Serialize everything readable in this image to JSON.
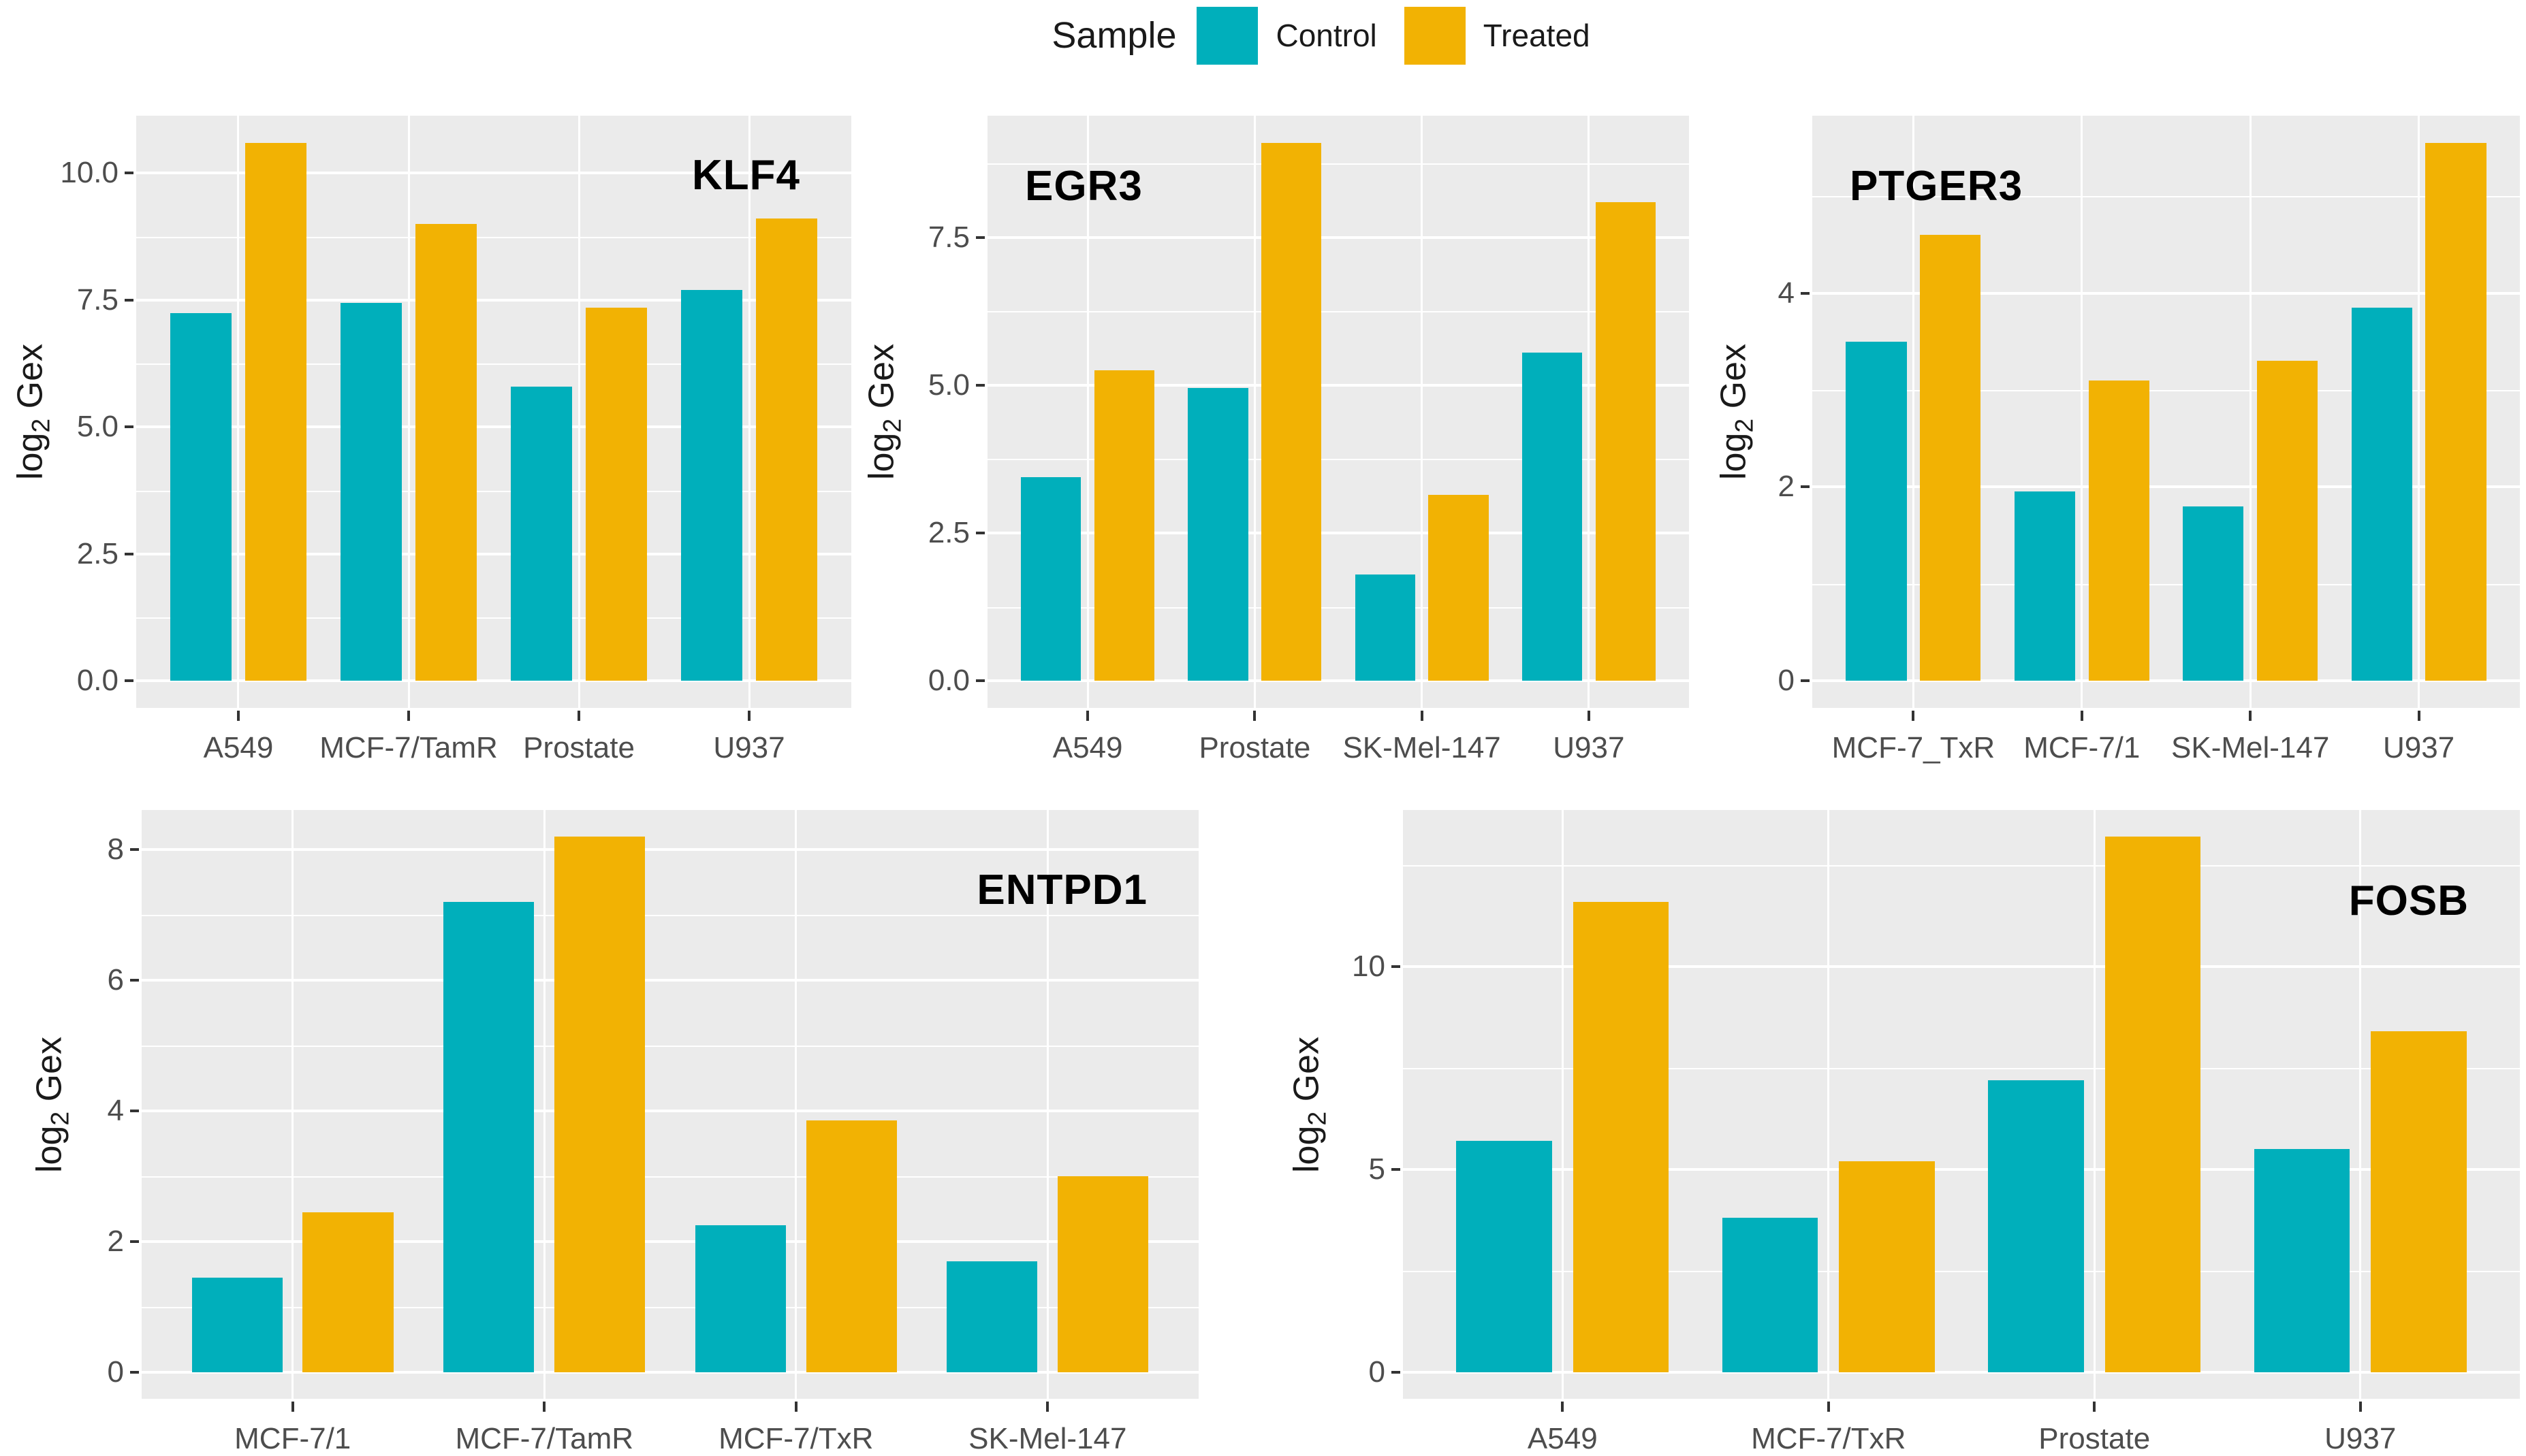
{
  "legend": {
    "title": "Sample",
    "items": [
      {
        "label": "Control",
        "color": "#00AFBB"
      },
      {
        "label": "Treated",
        "color": "#F2B203"
      }
    ]
  },
  "axis": {
    "y_title_pre": "log",
    "y_title_sub": "2",
    "y_title_post": " Gex"
  },
  "style": {
    "panel_bg": "#EBEBEB",
    "grid_color": "#FFFFFF",
    "tick_text_color": "#4D4D4D",
    "tick_mark_color": "#333333",
    "title_color": "#000000",
    "control_color": "#00AFBB",
    "treated_color": "#F2B203"
  },
  "chart_data": [
    {
      "type": "bar",
      "title": "KLF4",
      "title_pos": "right",
      "ylabel": "log2 Gex",
      "categories": [
        "A549",
        "MCF-7/TamR",
        "Prostate",
        "U937"
      ],
      "series": [
        {
          "name": "Control",
          "values": [
            7.25,
            7.45,
            5.8,
            7.7
          ]
        },
        {
          "name": "Treated",
          "values": [
            10.6,
            9.0,
            7.35,
            9.1
          ]
        }
      ],
      "yticks": [
        0,
        2.5,
        5,
        7.5,
        10
      ],
      "ytick_labels": [
        "0.0",
        "2.5",
        "5.0",
        "7.5",
        "10.0"
      ],
      "yminor": [
        1.25,
        3.75,
        6.25,
        8.75
      ],
      "ylim": [
        -0.53,
        11.13
      ],
      "grid": true,
      "legend_pos": "top"
    },
    {
      "type": "bar",
      "title": "EGR3",
      "title_pos": "left",
      "ylabel": "log2 Gex",
      "categories": [
        "A549",
        "Prostate",
        "SK-Mel-147",
        "U937"
      ],
      "series": [
        {
          "name": "Control",
          "values": [
            3.45,
            4.95,
            1.8,
            5.55
          ]
        },
        {
          "name": "Treated",
          "values": [
            5.25,
            9.1,
            3.15,
            8.1
          ]
        }
      ],
      "yticks": [
        0,
        2.5,
        5,
        7.5
      ],
      "ytick_labels": [
        "0.0",
        "2.5",
        "5.0",
        "7.5"
      ],
      "yminor": [
        1.25,
        3.75,
        6.25,
        8.75
      ],
      "ylim": [
        -0.46,
        9.56
      ],
      "grid": true,
      "legend_pos": "top"
    },
    {
      "type": "bar",
      "title": "PTGER3",
      "title_pos": "left",
      "ylabel": "log2 Gex",
      "categories": [
        "MCF-7_TxR",
        "MCF-7/1",
        "SK-Mel-147",
        "U937"
      ],
      "series": [
        {
          "name": "Control",
          "values": [
            3.5,
            1.95,
            1.8,
            3.85
          ]
        },
        {
          "name": "Treated",
          "values": [
            4.6,
            3.1,
            3.3,
            5.55
          ]
        }
      ],
      "yticks": [
        0,
        2,
        4
      ],
      "ytick_labels": [
        "0",
        "2",
        "4"
      ],
      "yminor": [
        1,
        3,
        5
      ],
      "ylim": [
        -0.28,
        5.83
      ],
      "grid": true,
      "legend_pos": "top"
    },
    {
      "type": "bar",
      "title": "ENTPD1",
      "title_pos": "right",
      "ylabel": "log2 Gex",
      "categories": [
        "MCF-7/1",
        "MCF-7/TamR",
        "MCF-7/TxR",
        "SK-Mel-147"
      ],
      "series": [
        {
          "name": "Control",
          "values": [
            1.45,
            7.2,
            2.25,
            1.7
          ]
        },
        {
          "name": "Treated",
          "values": [
            2.45,
            8.2,
            3.85,
            3.0
          ]
        }
      ],
      "yticks": [
        0,
        2,
        4,
        6,
        8
      ],
      "ytick_labels": [
        "0",
        "2",
        "4",
        "6",
        "8"
      ],
      "yminor": [
        1,
        3,
        5,
        7
      ],
      "ylim": [
        -0.41,
        8.61
      ],
      "grid": true,
      "legend_pos": "top"
    },
    {
      "type": "bar",
      "title": "FOSB",
      "title_pos": "right",
      "ylabel": "log2 Gex",
      "categories": [
        "A549",
        "MCF-7/TxR",
        "Prostate",
        "U937"
      ],
      "series": [
        {
          "name": "Control",
          "values": [
            5.7,
            3.8,
            7.2,
            5.5
          ]
        },
        {
          "name": "Treated",
          "values": [
            11.6,
            5.2,
            13.2,
            8.4
          ]
        }
      ],
      "yticks": [
        0,
        5,
        10
      ],
      "ytick_labels": [
        "0",
        "5",
        "10"
      ],
      "yminor": [
        2.5,
        7.5,
        12.5
      ],
      "ylim": [
        -0.66,
        13.86
      ],
      "grid": true,
      "legend_pos": "top"
    }
  ]
}
